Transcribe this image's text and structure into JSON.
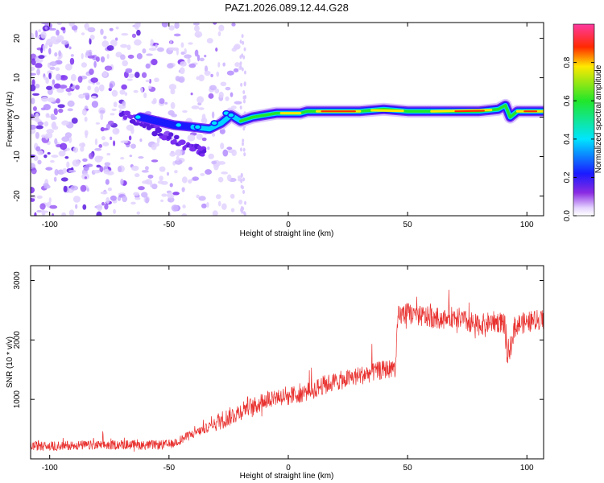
{
  "title": "PAZ1.2026.089.12.44.G28",
  "chart_data": [
    {
      "type": "heatmap",
      "title": "PAZ1.2026.089.12.44.G28",
      "xlabel": "Height of straight line (km)",
      "ylabel": "Frequency (Hz)",
      "xlim": [
        -108,
        107
      ],
      "ylim": [
        -25,
        24
      ],
      "xticks": [
        -100,
        -50,
        0,
        50,
        100
      ],
      "yticks": [
        -20,
        -10,
        0,
        10,
        20
      ],
      "colorbar": {
        "label": "Normalized spectral amplitude",
        "range": [
          0,
          1
        ],
        "ticks": [
          0.0,
          0.2,
          0.4,
          0.6,
          0.8
        ],
        "tick_labels": [
          "0.0",
          "0.2",
          "0.4",
          "0.6",
          "0.8"
        ]
      },
      "ridge": {
        "description": "Dominant frequency track vs height",
        "x": [
          -62,
          -55,
          -48,
          -40,
          -33,
          -28,
          -24,
          -20,
          -15,
          -10,
          -5,
          0,
          5,
          8,
          12,
          20,
          30,
          40,
          50,
          60,
          70,
          80,
          88,
          91,
          93,
          96,
          107
        ],
        "y": [
          0,
          -1,
          -2,
          -2.5,
          -3,
          -1.5,
          0.5,
          -1,
          0,
          0.5,
          1,
          1,
          1,
          1.5,
          1.5,
          1.5,
          1.5,
          2,
          1.5,
          1.5,
          1.5,
          1.5,
          2,
          3,
          0,
          1.5,
          1.5
        ]
      },
      "diagonal_streak": {
        "description": "Scattered band descending toward lower frequency",
        "x": [
          -70,
          -60,
          -50,
          -40,
          -35
        ],
        "y": [
          1,
          -2,
          -5,
          -8,
          -9
        ]
      }
    },
    {
      "type": "line",
      "xlabel": "Height of straight line (km)",
      "ylabel": "SNR (10 * v/v)",
      "xlim": [
        -108,
        107
      ],
      "ylim": [
        0,
        3250
      ],
      "xticks": [
        -100,
        -50,
        0,
        50,
        100
      ],
      "yticks": [
        1000,
        2000,
        3000
      ],
      "series": [
        {
          "name": "SNR",
          "color": "#e8312f",
          "x": [
            -108,
            -100,
            -90,
            -80,
            -70,
            -60,
            -50,
            -45,
            -40,
            -35,
            -30,
            -25,
            -20,
            -17,
            -15,
            -10,
            -5,
            0,
            5,
            10,
            15,
            20,
            25,
            30,
            35,
            40,
            45,
            46,
            50,
            55,
            60,
            65,
            70,
            75,
            80,
            85,
            90,
            92,
            95,
            100,
            107
          ],
          "values": [
            220,
            210,
            230,
            225,
            240,
            230,
            240,
            320,
            420,
            500,
            620,
            700,
            800,
            900,
            850,
            1000,
            1050,
            1050,
            1100,
            1150,
            1250,
            1300,
            1350,
            1400,
            1450,
            1500,
            1530,
            2400,
            2450,
            2400,
            2380,
            2350,
            2400,
            2300,
            2250,
            2300,
            2300,
            1700,
            2250,
            2300,
            2350
          ]
        }
      ]
    }
  ]
}
